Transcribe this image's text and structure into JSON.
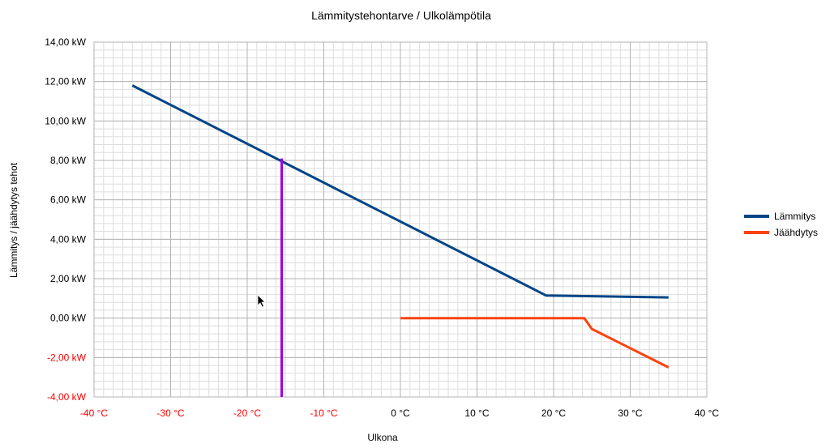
{
  "chart_data": {
    "type": "line",
    "title": "Lämmitystehontarve / Ulkolämpötila",
    "xlabel": "Ulkona",
    "ylabel": "Lämmitys / jäähdytys tehot",
    "xlim": [
      -40,
      40
    ],
    "ylim": [
      -4,
      14
    ],
    "x_ticks": [
      -40,
      -30,
      -20,
      -10,
      0,
      10,
      20,
      30,
      40
    ],
    "x_tick_labels": [
      "-40 °C",
      "-30 °C",
      "-20 °C",
      "-10 °C",
      "0 °C",
      "10 °C",
      "20 °C",
      "30 °C",
      "40 °C"
    ],
    "y_ticks": [
      -4,
      -2,
      0,
      2,
      4,
      6,
      8,
      10,
      12,
      14
    ],
    "y_tick_labels": [
      "-4,00 kW",
      "-2,00 kW",
      "0,00 kW",
      "2,00 kW",
      "4,00 kW",
      "6,00 kW",
      "8,00 kW",
      "10,00 kW",
      "12,00 kW",
      "14,00 kW"
    ],
    "negative_tick_color": "#ff0000",
    "grid": true,
    "legend_position": "right",
    "series": [
      {
        "name": "Lämmitys",
        "color": "#004586",
        "points": [
          [
            -35,
            11.8
          ],
          [
            19,
            1.15
          ],
          [
            35,
            1.05
          ]
        ]
      },
      {
        "name": "Jäähdytys",
        "color": "#ff420e",
        "points": [
          [
            0,
            0
          ],
          [
            24,
            0
          ],
          [
            25,
            -0.55
          ],
          [
            35,
            -2.5
          ]
        ]
      }
    ],
    "marker_line": {
      "color": "#a000e0",
      "x": -15.5,
      "y_top": 8.1,
      "y_bottom": -4
    }
  }
}
